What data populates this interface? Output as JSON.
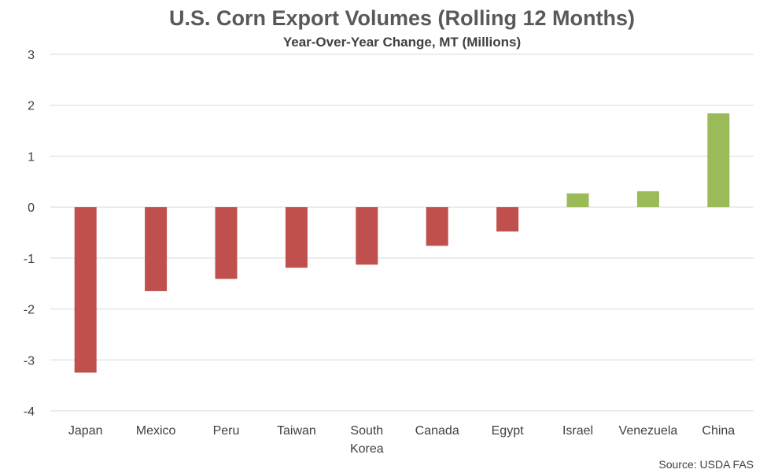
{
  "chart_data": {
    "type": "bar",
    "title": "U.S. Corn Export Volumes (Rolling 12 Months)",
    "subtitle": "Year-Over-Year Change, MT (Millions)",
    "xlabel": "",
    "ylabel": "",
    "categories": [
      "Japan",
      "Mexico",
      "Peru",
      "Taiwan",
      "South Korea",
      "Canada",
      "Egypt",
      "Israel",
      "Venezuela",
      "China"
    ],
    "values": [
      -3.25,
      -1.65,
      -1.41,
      -1.19,
      -1.13,
      -0.76,
      -0.48,
      0.27,
      0.31,
      1.84
    ],
    "ylim": [
      -4,
      3
    ],
    "yticks": [
      3,
      2,
      1,
      0,
      -1,
      -2,
      -3,
      -4
    ],
    "grid": true,
    "legend": "none",
    "colors": {
      "negative": "#c0504d",
      "positive": "#9bbb59"
    },
    "source": "Source: USDA FAS"
  }
}
